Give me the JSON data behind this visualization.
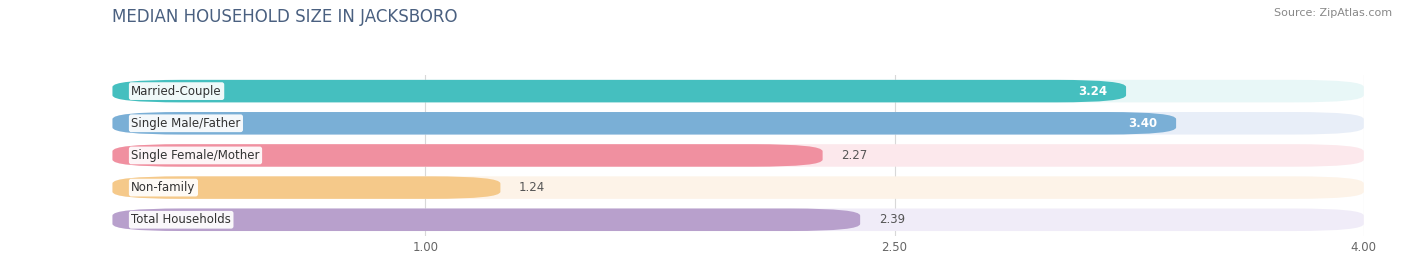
{
  "title": "MEDIAN HOUSEHOLD SIZE IN JACKSBORO",
  "source": "Source: ZipAtlas.com",
  "categories": [
    "Married-Couple",
    "Single Male/Father",
    "Single Female/Mother",
    "Non-family",
    "Total Households"
  ],
  "values": [
    3.24,
    3.4,
    2.27,
    1.24,
    2.39
  ],
  "bar_colors": [
    "#45bfbf",
    "#7aafd6",
    "#f090a0",
    "#f5c98a",
    "#b8a0cc"
  ],
  "bar_bg_colors": [
    "#e8f7f7",
    "#e8eef8",
    "#fce8ec",
    "#fdf3e8",
    "#f0ecf8"
  ],
  "xlim_min": 0.0,
  "xlim_max": 4.0,
  "xticks": [
    1.0,
    2.5,
    4.0
  ],
  "xtick_labels": [
    "1.00",
    "2.50",
    "4.00"
  ],
  "label_fontsize": 8.5,
  "value_fontsize": 8.5,
  "title_fontsize": 12,
  "source_fontsize": 8,
  "bar_height": 0.7,
  "title_color": "#4a6080",
  "source_color": "#888888",
  "grid_color": "#d8d8d8",
  "bg_color": "#ffffff",
  "value_outside_color": "#555555",
  "value_inside_color": "#ffffff"
}
